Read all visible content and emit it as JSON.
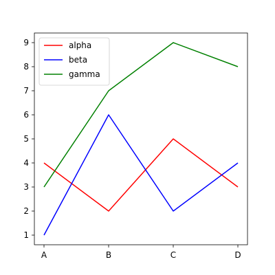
{
  "chart_data": {
    "type": "line",
    "title": "",
    "xlabel": "",
    "ylabel": "",
    "categories": [
      "A",
      "B",
      "C",
      "D"
    ],
    "ylim": [
      0.6,
      9.4
    ],
    "yticks": [
      1,
      2,
      3,
      4,
      5,
      6,
      7,
      8,
      9
    ],
    "grid": false,
    "legend_position": "top-left",
    "series": [
      {
        "name": "alpha",
        "color": "#ff0000",
        "values": [
          4,
          2,
          5,
          3
        ]
      },
      {
        "name": "beta",
        "color": "#0000ff",
        "values": [
          1,
          6,
          2,
          4
        ]
      },
      {
        "name": "gamma",
        "color": "#008000",
        "values": [
          3,
          7,
          9,
          8
        ]
      }
    ]
  }
}
